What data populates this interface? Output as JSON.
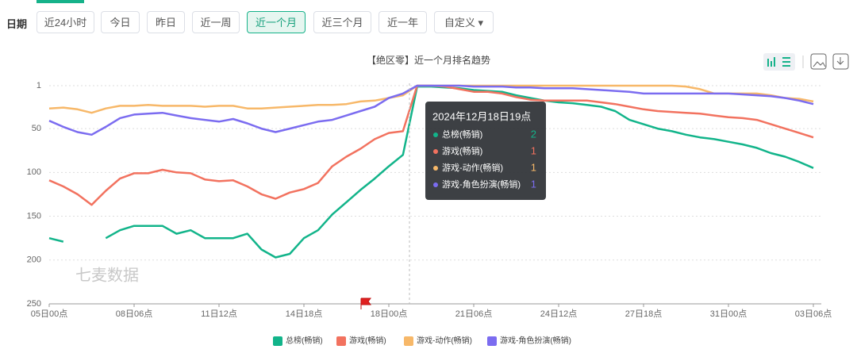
{
  "filters": {
    "label": "日期",
    "buttons": [
      "近24小时",
      "今日",
      "昨日",
      "近一周",
      "近一个月",
      "近三个月",
      "近一年",
      "自定义"
    ],
    "active": 4
  },
  "watermark": "七麦数据",
  "tooltip": {
    "title": "2024年12月18日19点",
    "values": [
      2,
      1,
      1,
      1
    ]
  },
  "chart_data": {
    "type": "line",
    "title": "【绝区零】近一个月排名趋势",
    "categories": [
      "05日00点",
      null,
      null,
      null,
      null,
      null,
      "08日06点",
      null,
      null,
      null,
      null,
      null,
      "11日12点",
      null,
      null,
      null,
      null,
      null,
      "14日18点",
      null,
      null,
      null,
      null,
      null,
      "18日00点",
      null,
      null,
      null,
      null,
      null,
      "21日06点",
      null,
      null,
      null,
      null,
      null,
      "24日12点",
      null,
      null,
      null,
      null,
      null,
      "27日18点",
      null,
      null,
      null,
      null,
      null,
      "31日00点",
      null,
      null,
      null,
      null,
      null,
      "03日06点"
    ],
    "ylim": [
      1,
      250
    ],
    "y_inverted": true,
    "yticks": [
      1,
      50,
      100,
      150,
      200,
      250
    ],
    "grid": true,
    "series": [
      {
        "name": "总榜(畅销)",
        "color": "#12b48a",
        "values": [
          175,
          179,
          null,
          null,
          175,
          166,
          161,
          161,
          161,
          170,
          166,
          175,
          175,
          175,
          170,
          188,
          197,
          193,
          175,
          166,
          148,
          134,
          120,
          107,
          93,
          80,
          2,
          2,
          3,
          4,
          6,
          7,
          8,
          12,
          15,
          18,
          20,
          21,
          23,
          25,
          30,
          40,
          45,
          50,
          53,
          57,
          60,
          62,
          65,
          68,
          72,
          78,
          82,
          88,
          95
        ]
      },
      {
        "name": "游戏(畅销)",
        "color": "#f2725f",
        "values": [
          109,
          116,
          125,
          137,
          121,
          107,
          101,
          101,
          97,
          100,
          101,
          108,
          110,
          109,
          116,
          125,
          130,
          123,
          119,
          112,
          93,
          82,
          73,
          62,
          55,
          53,
          1,
          1,
          2,
          5,
          8,
          8,
          10,
          14,
          17,
          18,
          18,
          18,
          18,
          20,
          22,
          25,
          28,
          30,
          31,
          32,
          33,
          35,
          37,
          38,
          40,
          45,
          50,
          55,
          60
        ]
      },
      {
        "name": "游戏-动作(畅销)",
        "color": "#f7b869",
        "values": [
          27,
          26,
          28,
          32,
          27,
          24,
          24,
          23,
          24,
          24,
          24,
          25,
          24,
          24,
          27,
          27,
          26,
          25,
          24,
          23,
          23,
          22,
          19,
          18,
          15,
          12,
          1,
          1,
          1,
          1,
          1,
          1,
          1,
          1,
          1,
          1,
          1,
          1,
          1,
          1,
          1,
          1,
          1,
          1,
          1,
          2,
          5,
          10,
          10,
          10,
          10,
          12,
          15,
          16,
          19
        ]
      },
      {
        "name": "游戏-角色扮演(畅销)",
        "color": "#7b6cf0",
        "values": [
          41,
          48,
          54,
          57,
          48,
          38,
          34,
          33,
          32,
          35,
          38,
          40,
          42,
          39,
          44,
          50,
          54,
          50,
          46,
          42,
          40,
          35,
          30,
          25,
          15,
          10,
          1,
          1,
          1,
          1,
          2,
          2,
          2,
          3,
          3,
          4,
          4,
          4,
          5,
          6,
          7,
          8,
          10,
          10,
          10,
          10,
          10,
          10,
          10,
          11,
          12,
          13,
          15,
          18,
          22
        ]
      }
    ]
  }
}
